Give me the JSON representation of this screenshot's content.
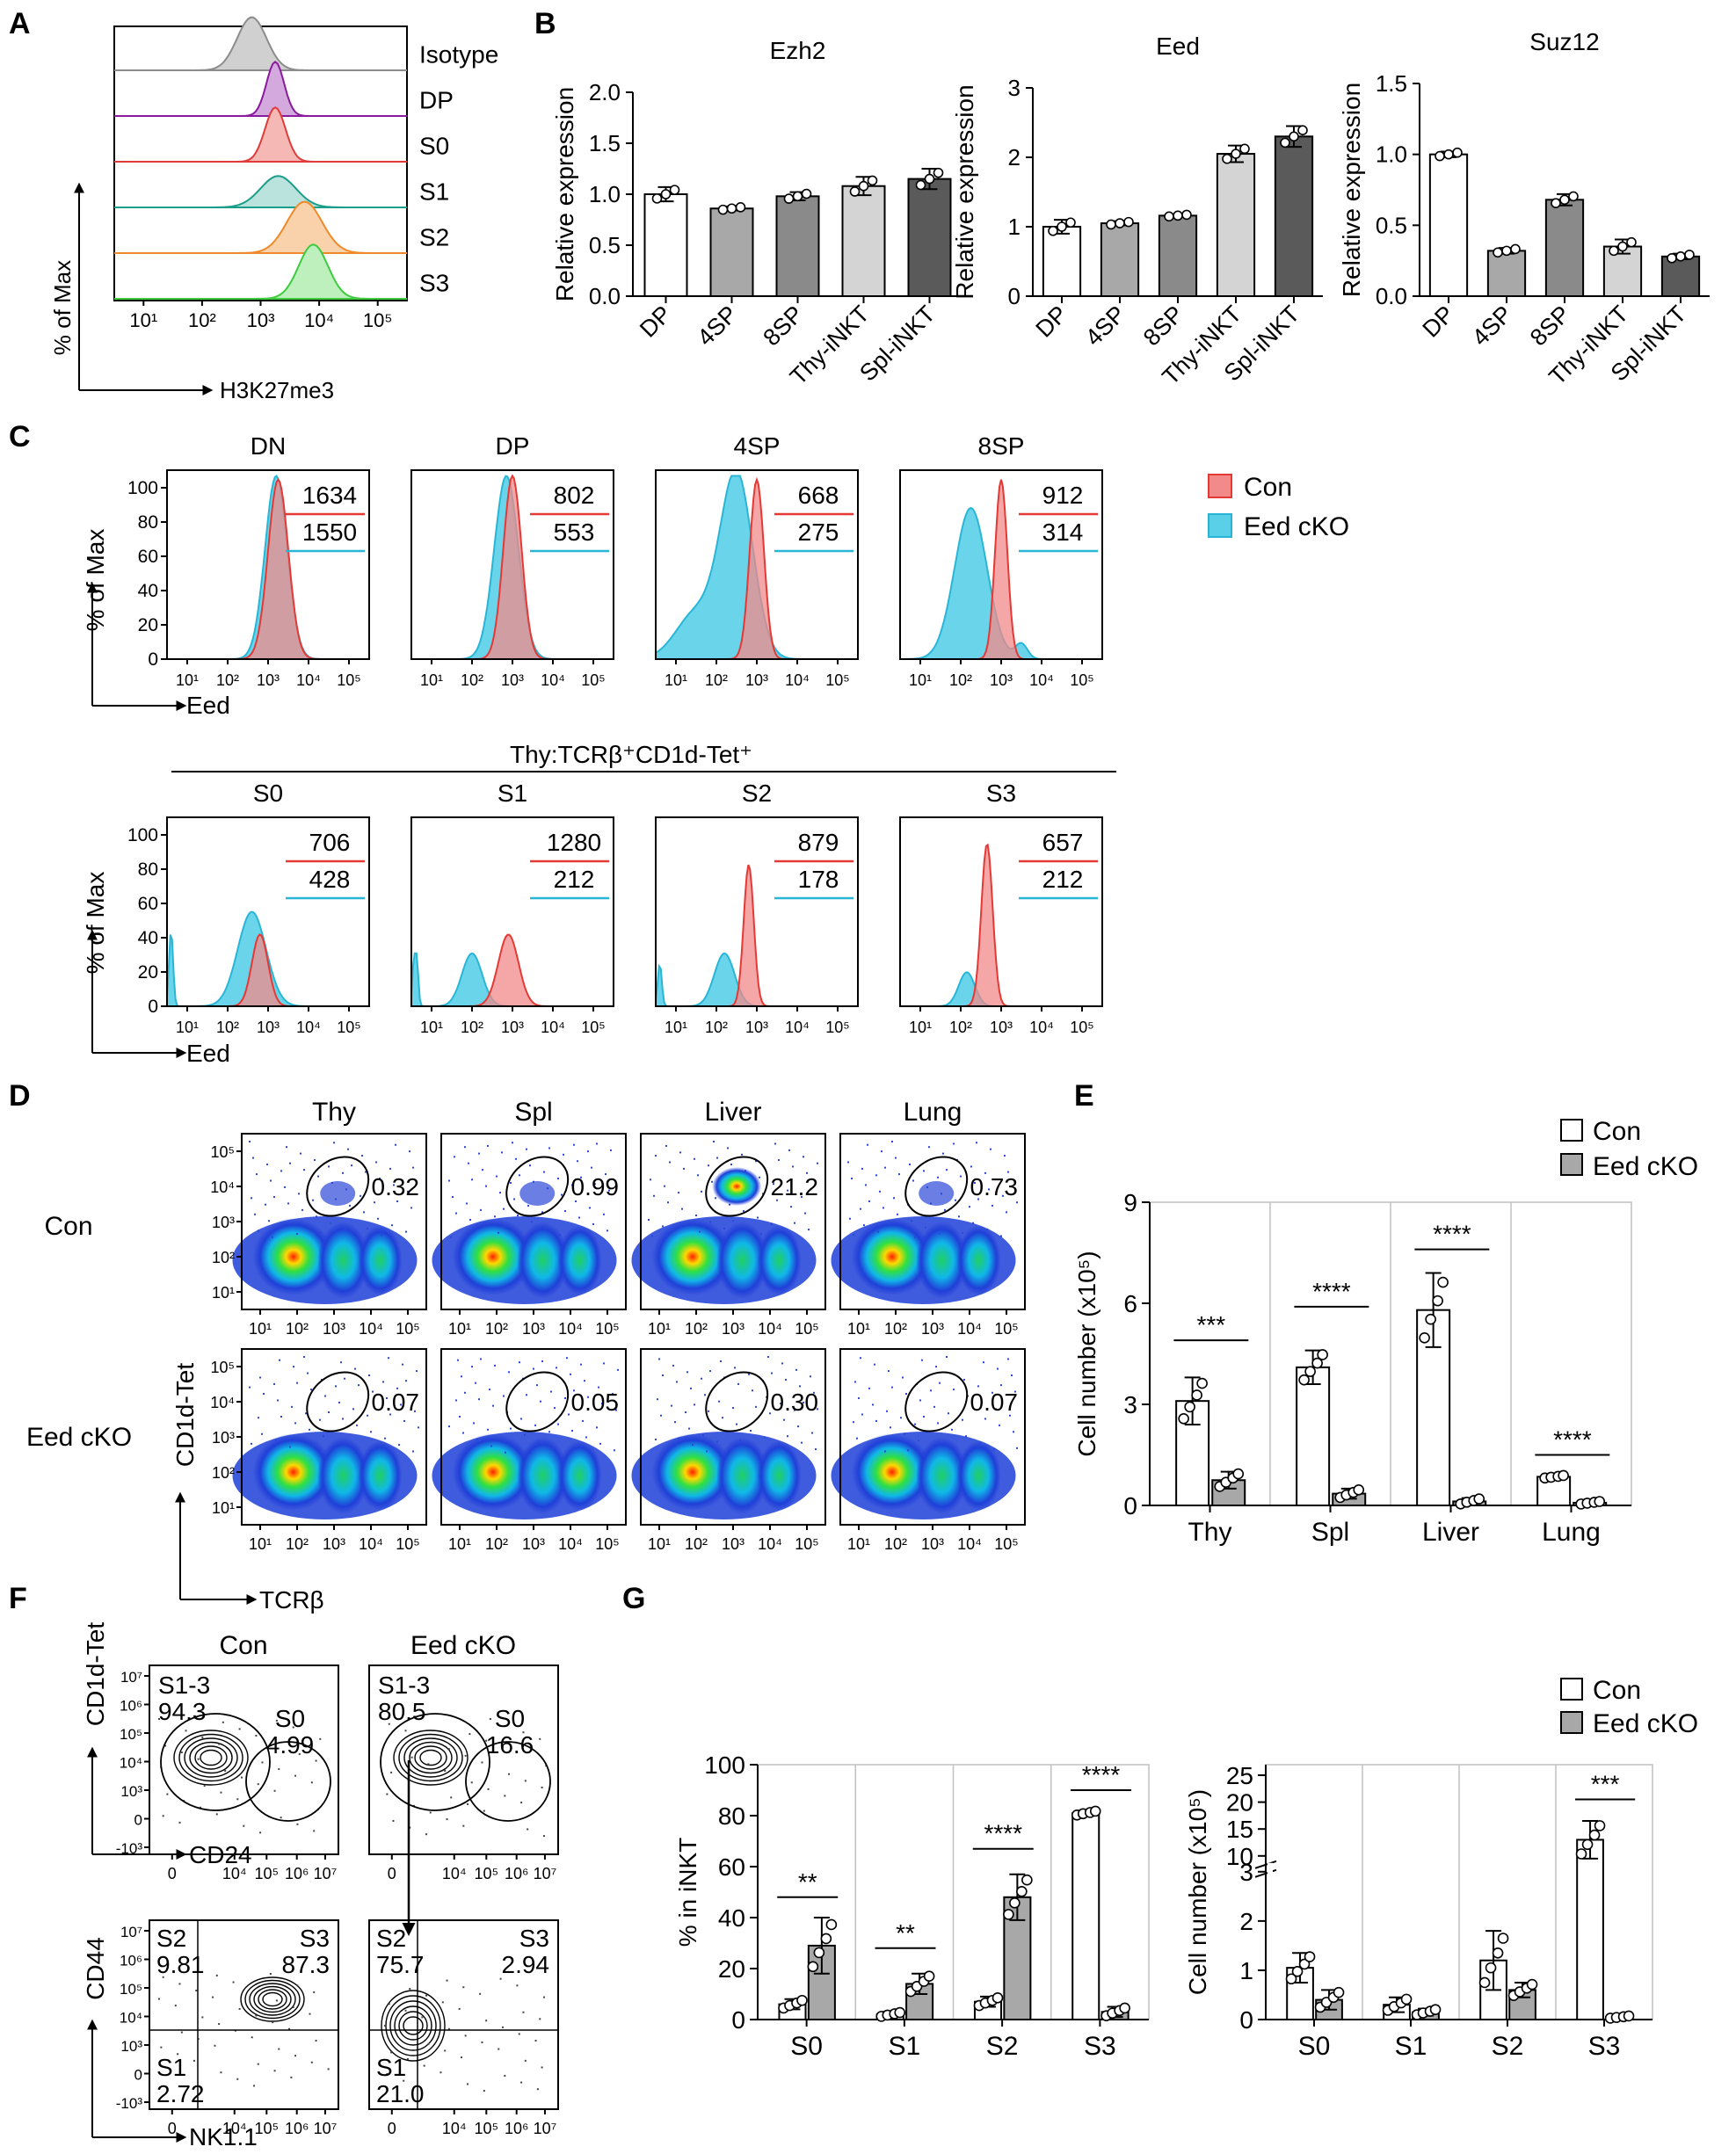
{
  "panel_letters": [
    "A",
    "B",
    "C",
    "D",
    "E",
    "F",
    "G"
  ],
  "axis_common": {
    "log_ticks": [
      "10¹",
      "10²",
      "10³",
      "10⁴",
      "10⁵"
    ],
    "log_ticks7": [
      "10⁷",
      "10⁶",
      "10⁵",
      "10⁴",
      "10³",
      "0",
      "-10³"
    ],
    "xtick_f": [
      "0",
      "10⁴",
      "10⁵",
      "10⁶",
      "10⁷"
    ]
  },
  "panel_a": {
    "y_title": "% of Max",
    "x_title": "H3K27me3",
    "rows": [
      {
        "label": "Isotype",
        "color": "#8c8c8c",
        "fill": "#d0d0d0",
        "peak": 0.93
      },
      {
        "label": "DP",
        "color": "#8a1a9e",
        "fill": "#d4a9de",
        "peak": 0.95
      },
      {
        "label": "S0",
        "color": "#e03b3b",
        "fill": "#f6b8b4",
        "peak": 0.95
      },
      {
        "label": "S1",
        "color": "#1a9e8a",
        "fill": "#b9e3dc",
        "peak": 0.55
      },
      {
        "label": "S2",
        "color": "#ee8a2a",
        "fill": "#f9d2ac",
        "peak": 0.9
      },
      {
        "label": "S3",
        "color": "#3ecb3e",
        "fill": "#bdf0bd",
        "peak": 0.95
      }
    ]
  },
  "panel_c": {
    "y_title": "% of Max",
    "x_title": "Eed",
    "yticks": [
      "100",
      "80",
      "60",
      "40",
      "20",
      "0"
    ],
    "legend": [
      {
        "label": "Con",
        "color": "#f28a8a"
      },
      {
        "label": "Eed cKO",
        "color": "#5ad0e8"
      }
    ],
    "legend_colors": {
      "con": "#e53935",
      "cko": "#29b6d6"
    },
    "group_title": "Thy:TCRβ⁺CD1d-Tet⁺",
    "row1": [
      {
        "title": "DN",
        "con": "1634",
        "cko": "1550"
      },
      {
        "title": "DP",
        "con": "802",
        "cko": "553"
      },
      {
        "title": "4SP",
        "con": "668",
        "cko": "275"
      },
      {
        "title": "8SP",
        "con": "912",
        "cko": "314"
      }
    ],
    "row2": [
      {
        "title": "S0",
        "con": "706",
        "cko": "428"
      },
      {
        "title": "S1",
        "con": "1280",
        "cko": "212"
      },
      {
        "title": "S2",
        "con": "879",
        "cko": "178"
      },
      {
        "title": "S3",
        "con": "657",
        "cko": "212"
      }
    ]
  },
  "panel_d": {
    "columns": [
      "Thy",
      "Spl",
      "Liver",
      "Lung"
    ],
    "rows": [
      "Con",
      "Eed cKO"
    ],
    "con_values": [
      "0.32",
      "0.99",
      "21.2",
      "0.73"
    ],
    "cko_values": [
      "0.07",
      "0.05",
      "0.30",
      "0.07"
    ],
    "y_title": "CD1d-Tet",
    "x_title": "TCRβ"
  },
  "panel_f": {
    "titles": [
      "Con",
      "Eed cKO"
    ],
    "top_y": "CD1d-Tet",
    "top_x": "CD24",
    "bottom_y": "CD44",
    "bottom_x": "NK1.1",
    "top_con": {
      "g1": "S1-3",
      "v1": "94.3",
      "g2": "S0",
      "v2": "4.99"
    },
    "top_cko": {
      "g1": "S1-3",
      "v1": "80.5",
      "g2": "S0",
      "v2": "16.6"
    },
    "bot_con": {
      "s2": "S2",
      "v2": "9.81",
      "s3": "S3",
      "v3": "87.3",
      "s1": "S1",
      "v1": "2.72"
    },
    "bot_cko": {
      "s2": "S2",
      "v2": "75.7",
      "s3": "S3",
      "v3": "2.94",
      "s1": "S1",
      "v1": "21.0"
    }
  },
  "chart_data": [
    {
      "type": "bar",
      "id": "B1",
      "title": "Ezh2",
      "ylabel": "Relative expression",
      "categories": [
        "DP",
        "4SP",
        "8SP",
        "Thy-iNKT",
        "Spl-iNKT"
      ],
      "values": [
        1.0,
        0.86,
        0.98,
        1.08,
        1.15
      ],
      "errors": [
        0.07,
        0.02,
        0.04,
        0.09,
        0.1
      ],
      "ylim": [
        0,
        2.0
      ],
      "yticks": [
        "0.0",
        "0.5",
        "1.0",
        "1.5",
        "2.0"
      ],
      "colors": [
        "#ffffff",
        "#a8a8a8",
        "#8a8a8a",
        "#d4d4d4",
        "#5a5a5a"
      ]
    },
    {
      "type": "bar",
      "id": "B2",
      "title": "Eed",
      "ylabel": "Relative expression",
      "categories": [
        "DP",
        "4SP",
        "8SP",
        "Thy-iNKT",
        "Spl-iNKT"
      ],
      "values": [
        1.0,
        1.05,
        1.16,
        2.05,
        2.3
      ],
      "errors": [
        0.1,
        0.03,
        0.02,
        0.12,
        0.15
      ],
      "ylim": [
        0,
        3
      ],
      "yticks": [
        "0",
        "1",
        "2",
        "3"
      ],
      "colors": [
        "#ffffff",
        "#a8a8a8",
        "#8a8a8a",
        "#d4d4d4",
        "#5a5a5a"
      ]
    },
    {
      "type": "bar",
      "id": "B3",
      "title": "Suz12",
      "ylabel": "Relative expression",
      "categories": [
        "DP",
        "4SP",
        "8SP",
        "Thy-iNKT",
        "Spl-iNKT"
      ],
      "values": [
        1.0,
        0.32,
        0.68,
        0.35,
        0.28
      ],
      "errors": [
        0.02,
        0.02,
        0.04,
        0.05,
        0.02
      ],
      "ylim": [
        0,
        1.5
      ],
      "yticks": [
        "0.0",
        "0.5",
        "1.0",
        "1.5"
      ],
      "colors": [
        "#ffffff",
        "#a8a8a8",
        "#8a8a8a",
        "#d4d4d4",
        "#5a5a5a"
      ]
    },
    {
      "type": "bar",
      "id": "E",
      "ylabel": "Cell number (x10⁵)",
      "categories": [
        "Thy",
        "Spl",
        "Liver",
        "Lung"
      ],
      "series": [
        {
          "name": "Con",
          "values": [
            3.1,
            4.1,
            5.8,
            0.85
          ],
          "errors": [
            0.7,
            0.5,
            1.1,
            0.05
          ],
          "color": "#ffffff"
        },
        {
          "name": "Eed cKO",
          "values": [
            0.75,
            0.35,
            0.12,
            0.08
          ],
          "errors": [
            0.25,
            0.15,
            0.1,
            0.05
          ],
          "color": "#a8a8a8"
        }
      ],
      "significance": [
        "***",
        "****",
        "****",
        "****"
      ],
      "ylim": [
        0,
        9
      ],
      "yticks": [
        "0",
        "3",
        "6",
        "9"
      ],
      "legend": [
        "Con",
        "Eed cKO"
      ]
    },
    {
      "type": "bar",
      "id": "G1",
      "ylabel": "% in iNKT",
      "categories": [
        "S0",
        "S1",
        "S2",
        "S3"
      ],
      "series": [
        {
          "name": "Con",
          "values": [
            6,
            2,
            7,
            81
          ],
          "errors": [
            2,
            1,
            2,
            1
          ],
          "color": "#ffffff"
        },
        {
          "name": "Eed cKO",
          "values": [
            29,
            14,
            48,
            3
          ],
          "errors": [
            11,
            4,
            9,
            2
          ],
          "color": "#a8a8a8"
        }
      ],
      "significance": [
        "**",
        "**",
        "****",
        "****"
      ],
      "ylim": [
        0,
        100
      ],
      "yticks": [
        "0",
        "20",
        "40",
        "60",
        "80",
        "100"
      ]
    },
    {
      "type": "bar",
      "id": "G2",
      "ylabel": "Cell number (x10⁵)",
      "categories": [
        "S0",
        "S1",
        "S2",
        "S3"
      ],
      "series": [
        {
          "name": "Con",
          "values": [
            1.05,
            0.3,
            1.2,
            13
          ],
          "errors": [
            0.3,
            0.15,
            0.6,
            3.5
          ],
          "color": "#ffffff"
        },
        {
          "name": "Eed cKO",
          "values": [
            0.4,
            0.15,
            0.6,
            0.05
          ],
          "errors": [
            0.2,
            0.07,
            0.15,
            0.03
          ],
          "color": "#a8a8a8"
        }
      ],
      "significance": [
        "",
        "",
        "",
        "***"
      ],
      "ylim": [
        0,
        25
      ],
      "yticks_low": [
        "0",
        "1",
        "2",
        "3"
      ],
      "yticks_high": [
        "10",
        "15",
        "20",
        "25"
      ],
      "legend": [
        "Con",
        "Eed cKO"
      ]
    }
  ]
}
